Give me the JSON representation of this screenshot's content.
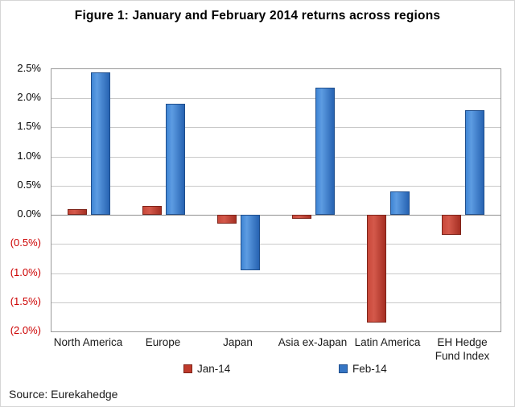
{
  "title": "Figure 1: January and February 2014 returns across regions",
  "source": "Source: Eurekahedge",
  "colors": {
    "jan_series": "#BF3A2B",
    "feb_series": "#3575C4",
    "negative_tick": "#CC0000",
    "gridline": "#C9C9C9"
  },
  "chart_data": {
    "type": "bar",
    "title": "Figure 1: January and February 2014 returns across regions",
    "categories": [
      "North America",
      "Europe",
      "Japan",
      "Asia ex-Japan",
      "Latin America",
      "EH Hedge Fund Index"
    ],
    "series": [
      {
        "name": "Jan-14",
        "color": "#BF3A2B",
        "values": [
          0.1,
          0.15,
          -0.15,
          -0.07,
          -1.85,
          -0.35
        ]
      },
      {
        "name": "Feb-14",
        "color": "#3575C4",
        "values": [
          2.45,
          1.9,
          -0.95,
          2.18,
          0.4,
          1.8
        ]
      }
    ],
    "xlabel": "",
    "ylabel": "",
    "ylim": [
      -2.0,
      2.5
    ],
    "ytick_step": 0.5,
    "yticks": [
      {
        "value": 2.5,
        "label": "2.5%"
      },
      {
        "value": 2.0,
        "label": "2.0%"
      },
      {
        "value": 1.5,
        "label": "1.5%"
      },
      {
        "value": 1.0,
        "label": "1.0%"
      },
      {
        "value": 0.5,
        "label": "0.5%"
      },
      {
        "value": 0.0,
        "label": "0.0%"
      },
      {
        "value": -0.5,
        "label": "(0.5%)"
      },
      {
        "value": -1.0,
        "label": "(1.0%)"
      },
      {
        "value": -1.5,
        "label": "(1.5%)"
      },
      {
        "value": -2.0,
        "label": "(2.0%)"
      }
    ],
    "grid": true,
    "legend_position": "bottom"
  }
}
